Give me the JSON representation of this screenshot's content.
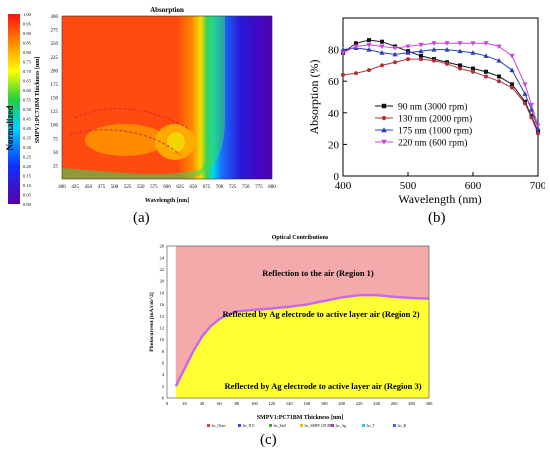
{
  "panel_captions": {
    "a": "(a)",
    "b": "(b)",
    "c": "(c)"
  },
  "colors": {
    "chart_b_black": "#111111",
    "chart_b_red": "#b0303a",
    "chart_b_blue": "#2a3fb8",
    "chart_b_magenta": "#cc44dd",
    "chart_c_upper": "#f4aaaa",
    "chart_c_lower": "#ffff33",
    "chart_c_curve": "#cc66ee"
  },
  "chart_data": [
    {
      "type": "heatmap",
      "title": "Absorption",
      "xlabel": "Wavelength [nm]",
      "ylabel": "SMPV1:PC71BM Thickness [nm]",
      "colorbar_label": "Normalized",
      "x_ticks": [
        "400",
        "425",
        "450",
        "475",
        "500",
        "525",
        "550",
        "575",
        "600",
        "625",
        "650",
        "675",
        "700",
        "725",
        "750",
        "775",
        "800"
      ],
      "y_ticks": [
        "25",
        "50",
        "75",
        "100",
        "125",
        "150",
        "175",
        "200",
        "225",
        "250",
        "275",
        "300"
      ],
      "colorbar_ticks": [
        "0.00",
        "0.05",
        "0.10",
        "0.15",
        "0.20",
        "0.25",
        "0.30",
        "0.35",
        "0.40",
        "0.45",
        "0.50",
        "0.55",
        "0.60",
        "0.65",
        "0.70",
        "0.75",
        "0.80",
        "0.85",
        "0.90",
        "0.95",
        "1.00"
      ],
      "xlim": [
        400,
        800
      ],
      "ylim": [
        0,
        300
      ]
    },
    {
      "type": "line",
      "xlabel": "Wavelength (nm)",
      "ylabel": "Absorption (%)",
      "xlim": [
        400,
        700
      ],
      "ylim": [
        0,
        100
      ],
      "x_ticks": [
        "400",
        "500",
        "600",
        "700"
      ],
      "y_ticks": [
        "0",
        "20",
        "40",
        "60",
        "80"
      ],
      "legend_position": "center-right",
      "x": [
        400,
        420,
        440,
        460,
        480,
        500,
        520,
        540,
        560,
        580,
        600,
        620,
        640,
        660,
        680,
        690,
        700
      ],
      "series": [
        {
          "name": "90 nm   (3000 rpm)",
          "marker": "square",
          "values": [
            78,
            84,
            86,
            85,
            82,
            79,
            76,
            74,
            72,
            70,
            68,
            66,
            63,
            58,
            47,
            38,
            28
          ]
        },
        {
          "name": "130 nm  (2000 rpm)",
          "marker": "circle",
          "values": [
            64,
            65,
            67,
            70,
            72,
            74,
            74,
            73,
            71,
            68,
            66,
            63,
            60,
            56,
            46,
            37,
            27
          ]
        },
        {
          "name": "175 nm  (1000 rpm)",
          "marker": "triangle",
          "values": [
            80,
            81,
            80,
            78,
            77,
            78,
            79,
            80,
            80,
            79,
            78,
            76,
            73,
            67,
            52,
            42,
            30
          ]
        },
        {
          "name": "220 nm  (600 rpm)",
          "marker": "triangle-down",
          "values": [
            78,
            82,
            83,
            82,
            81,
            82,
            83,
            84,
            84,
            84,
            84,
            84,
            82,
            76,
            58,
            45,
            32
          ]
        }
      ]
    },
    {
      "type": "area",
      "title": "Optical Contributions",
      "xlabel": "SMPV1:PC71BM Thickness [nm]",
      "ylabel": "Photocurrent [mA/cm^2]",
      "xlim": [
        0,
        300
      ],
      "ylim": [
        0,
        26
      ],
      "x_ticks": [
        "0",
        "20",
        "40",
        "60",
        "80",
        "100",
        "120",
        "140",
        "160",
        "180",
        "200",
        "220",
        "240",
        "260",
        "280",
        "300"
      ],
      "y_ticks": [
        "0",
        "2",
        "4",
        "6",
        "8",
        "10",
        "12",
        "14",
        "16",
        "18",
        "20",
        "22",
        "24",
        "26"
      ],
      "x": [
        10,
        20,
        30,
        40,
        50,
        60,
        70,
        80,
        100,
        120,
        140,
        160,
        180,
        200,
        220,
        240,
        260,
        280,
        300
      ],
      "values": [
        2,
        5,
        8,
        10.5,
        12.3,
        13.5,
        14.3,
        14.8,
        15.1,
        15.3,
        15.6,
        16,
        16.6,
        17.2,
        17.6,
        17.6,
        17.3,
        17.1,
        17
      ],
      "annotations": [
        "Reflection to the air (Region 1)",
        "Reflected by Ag electrode to active layer air (Region 2)",
        "Reflected by Ag electrode to active layer air (Region 3)"
      ],
      "legend": [
        "Isc_Glass",
        "Isc_ITO",
        "Isc_ZnO",
        "Isc_SMPV1:PCBM",
        "Isc_Ag",
        "Isc_T",
        "Isc_R"
      ]
    }
  ]
}
